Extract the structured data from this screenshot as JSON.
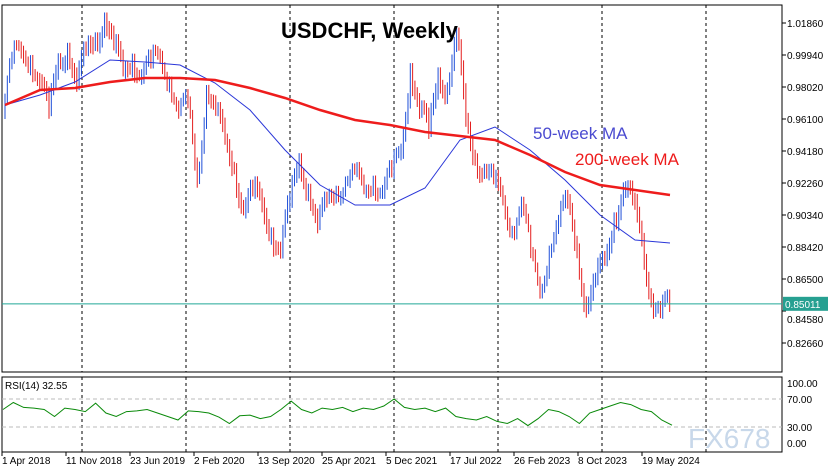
{
  "chart_data": [
    {
      "type": "bar",
      "title": "USDCHF, Weekly",
      "symbol": "USDCHF",
      "timeframe": "Weekly",
      "x_tick_labels": [
        "1 Apr 2018",
        "11 Nov 2018",
        "23 Jun 2019",
        "2 Feb 2020",
        "13 Sep 2020",
        "25 Apr 2021",
        "5 Dec 2021",
        "17 Jul 2022",
        "26 Feb 2023",
        "8 Oct 2023",
        "19 May 2024"
      ],
      "y_tick_labels": [
        "1.01860",
        "0.99940",
        "0.98020",
        "0.96100",
        "0.94180",
        "0.92260",
        "0.90340",
        "0.88420",
        "0.86500",
        "0.84580",
        "0.82660"
      ],
      "ylim": [
        0.8146,
        1.0282
      ],
      "grid": "vertical dashed",
      "current_price": "0.85011",
      "closes": [
        0.966,
        0.999,
        1.002,
        0.996,
        0.984,
        0.966,
        0.996,
        1.002,
        0.981,
        1.002,
        1.008,
        1.02,
        1.005,
        0.99,
        0.996,
        0.987,
        0.996,
        0.999,
        0.984,
        0.966,
        0.972,
        0.924,
        0.978,
        0.966,
        0.948,
        0.93,
        0.906,
        0.918,
        0.909,
        0.891,
        0.882,
        0.912,
        0.936,
        0.918,
        0.897,
        0.912,
        0.918,
        0.924,
        0.93,
        0.918,
        0.924,
        0.918,
        0.93,
        0.942,
        0.99,
        0.966,
        0.954,
        0.987,
        0.978,
        1.011,
        0.96,
        0.936,
        0.93,
        0.924,
        0.912,
        0.894,
        0.912,
        0.882,
        0.858,
        0.882,
        0.9,
        0.912,
        0.882,
        0.846,
        0.864,
        0.876,
        0.9,
        0.918,
        0.912,
        0.888,
        0.852,
        0.846,
        0.85
      ],
      "series": [
        {
          "name": "50-week MA",
          "color": "#2a36d8",
          "values": [
            0.9694,
            0.9754,
            0.9832,
            0.9964,
            0.9952,
            0.9934,
            0.9826,
            0.9664,
            0.9424,
            0.9214,
            0.9094,
            0.9094,
            0.9196,
            0.9484,
            0.9562,
            0.9424,
            0.9244,
            0.9034,
            0.8884,
            0.8866
          ]
        },
        {
          "name": "200-week MA",
          "color": "#ee1c1c",
          "values": [
            0.9694,
            0.9784,
            0.9796,
            0.9832,
            0.9856,
            0.9856,
            0.9844,
            0.9796,
            0.9736,
            0.9664,
            0.9604,
            0.9574,
            0.9532,
            0.9508,
            0.9484,
            0.9394,
            0.9292,
            0.9214,
            0.9184,
            0.9154
          ]
        }
      ],
      "colors": {
        "up": "#1f4fd8",
        "down": "#e41e1e",
        "price_line": "#20a898"
      }
    },
    {
      "type": "line",
      "title": "RSI(14) 32.55",
      "y_tick_labels": [
        "100.00",
        "70.00",
        "30.00",
        "0.00"
      ],
      "ylim": [
        0,
        100
      ],
      "levels": [
        70,
        30
      ],
      "color": "#0a8a0a",
      "values": [
        55,
        65,
        58,
        57,
        55,
        45,
        57,
        55,
        52,
        64,
        50,
        45,
        52,
        53,
        55,
        50,
        45,
        40,
        53,
        52,
        50,
        44,
        35,
        46,
        47,
        42,
        45,
        55,
        67,
        55,
        50,
        57,
        55,
        58,
        52,
        57,
        55,
        60,
        70,
        58,
        55,
        57,
        52,
        57,
        45,
        42,
        40,
        45,
        38,
        35,
        42,
        32,
        42,
        55,
        52,
        45,
        35,
        50,
        55,
        60,
        65,
        62,
        55,
        52,
        40,
        32.55
      ]
    }
  ],
  "watermark": "FX678"
}
